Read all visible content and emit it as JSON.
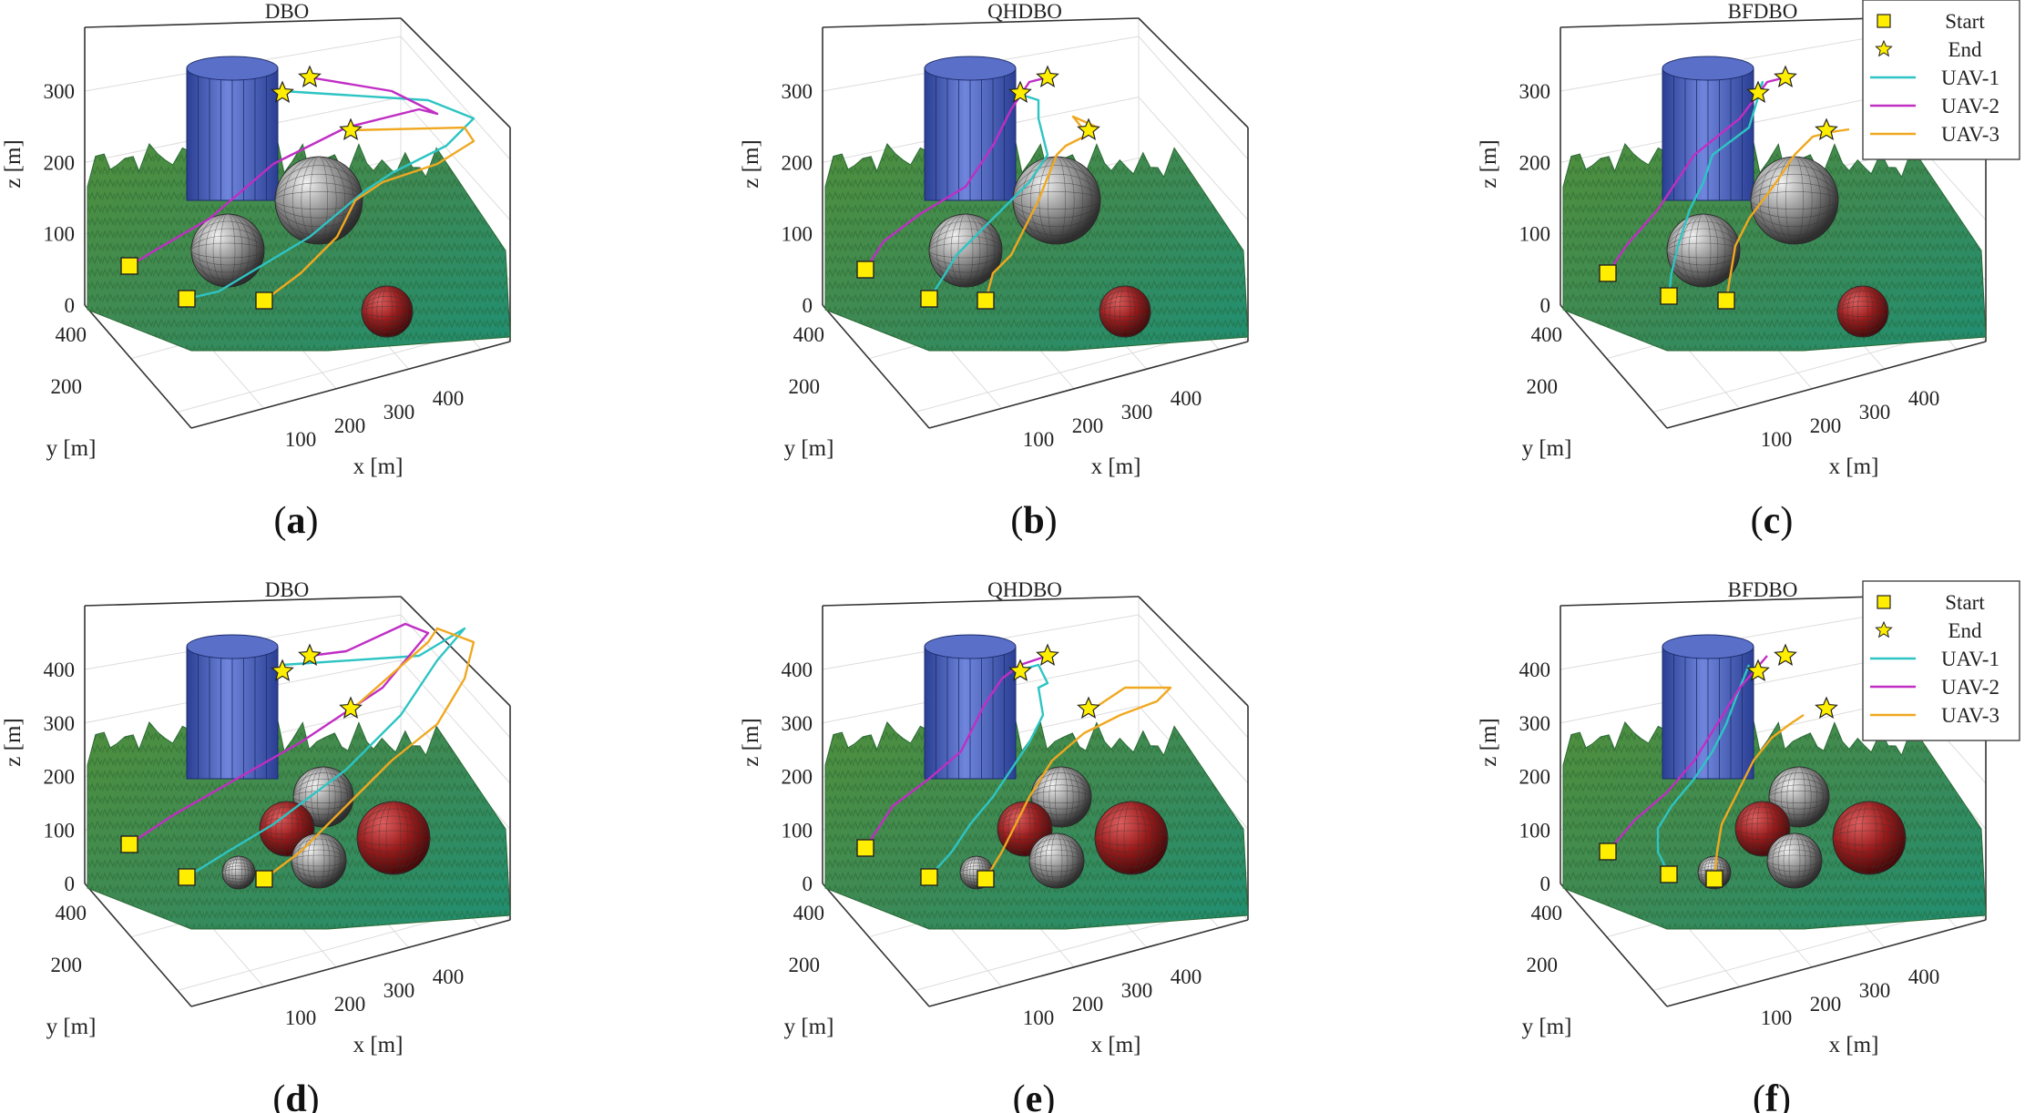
{
  "chart_data": [
    {
      "id": "a",
      "title": "DBO",
      "caption": "a",
      "type": "line3d",
      "xlabel": "x [m]",
      "ylabel": "y [m]",
      "zlabel": "z [m]",
      "xticks": [
        "100",
        "200",
        "300",
        "400"
      ],
      "yticks": [
        "200",
        "400"
      ],
      "zticks": [
        "0",
        "100",
        "200",
        "300"
      ],
      "legend": [],
      "markers": {
        "start": "Start",
        "end": "End"
      },
      "series": [
        {
          "name": "UAV-1",
          "color": "#2ec4c4"
        },
        {
          "name": "UAV-2",
          "color": "#c02ec4"
        },
        {
          "name": "UAV-3",
          "color": "#f0a820"
        }
      ]
    },
    {
      "id": "b",
      "title": "QHDBO",
      "caption": "b",
      "type": "line3d",
      "xlabel": "x [m]",
      "ylabel": "y [m]",
      "zlabel": "z [m]",
      "xticks": [
        "100",
        "200",
        "300",
        "400"
      ],
      "yticks": [
        "200",
        "400"
      ],
      "zticks": [
        "0",
        "100",
        "200",
        "300"
      ],
      "legend": [],
      "markers": {
        "start": "Start",
        "end": "End"
      },
      "series": [
        {
          "name": "UAV-1",
          "color": "#2ec4c4"
        },
        {
          "name": "UAV-2",
          "color": "#c02ec4"
        },
        {
          "name": "UAV-3",
          "color": "#f0a820"
        }
      ]
    },
    {
      "id": "c",
      "title": "BFDBO",
      "caption": "c",
      "type": "line3d",
      "xlabel": "x [m]",
      "ylabel": "y [m]",
      "zlabel": "z [m]",
      "xticks": [
        "100",
        "200",
        "300",
        "400"
      ],
      "yticks": [
        "200",
        "400"
      ],
      "zticks": [
        "0",
        "100",
        "200",
        "300"
      ],
      "legend": [
        "Start",
        "End",
        "UAV-1",
        "UAV-2",
        "UAV-3"
      ],
      "markers": {
        "start": "Start",
        "end": "End"
      },
      "series": [
        {
          "name": "UAV-1",
          "color": "#2ec4c4"
        },
        {
          "name": "UAV-2",
          "color": "#c02ec4"
        },
        {
          "name": "UAV-3",
          "color": "#f0a820"
        }
      ]
    },
    {
      "id": "d",
      "title": "DBO",
      "caption": "d",
      "type": "line3d",
      "xlabel": "x [m]",
      "ylabel": "y [m]",
      "zlabel": "z [m]",
      "xticks": [
        "100",
        "200",
        "300",
        "400"
      ],
      "yticks": [
        "200",
        "400"
      ],
      "zticks": [
        "0",
        "100",
        "200",
        "300",
        "400"
      ],
      "legend": [],
      "markers": {
        "start": "Start",
        "end": "End"
      },
      "series": [
        {
          "name": "UAV-1",
          "color": "#2ec4c4"
        },
        {
          "name": "UAV-2",
          "color": "#c02ec4"
        },
        {
          "name": "UAV-3",
          "color": "#f0a820"
        }
      ]
    },
    {
      "id": "e",
      "title": "QHDBO",
      "caption": "e",
      "type": "line3d",
      "xlabel": "x [m]",
      "ylabel": "y [m]",
      "zlabel": "z [m]",
      "xticks": [
        "100",
        "200",
        "300",
        "400"
      ],
      "yticks": [
        "200",
        "400"
      ],
      "zticks": [
        "0",
        "100",
        "200",
        "300",
        "400"
      ],
      "legend": [],
      "markers": {
        "start": "Start",
        "end": "End"
      },
      "series": [
        {
          "name": "UAV-1",
          "color": "#2ec4c4"
        },
        {
          "name": "UAV-2",
          "color": "#c02ec4"
        },
        {
          "name": "UAV-3",
          "color": "#f0a820"
        }
      ]
    },
    {
      "id": "f",
      "title": "BFDBO",
      "caption": "f",
      "type": "line3d",
      "xlabel": "x [m]",
      "ylabel": "y [m]",
      "zlabel": "z [m]",
      "xticks": [
        "100",
        "200",
        "300",
        "400"
      ],
      "yticks": [
        "200",
        "400"
      ],
      "zticks": [
        "0",
        "100",
        "200",
        "300",
        "400"
      ],
      "legend": [
        "Start",
        "End",
        "UAV-1",
        "UAV-2",
        "UAV-3"
      ],
      "markers": {
        "start": "Start",
        "end": "End"
      },
      "series": [
        {
          "name": "UAV-1",
          "color": "#2ec4c4"
        },
        {
          "name": "UAV-2",
          "color": "#c02ec4"
        },
        {
          "name": "UAV-3",
          "color": "#f0a820"
        }
      ]
    }
  ],
  "colors": {
    "terrain": "#3c8f4f",
    "terrain_dark": "#245f33",
    "cylinder": "#3d55b0",
    "sphere_grey": "#8a8a8a",
    "sphere_red": "#8b1a1a",
    "marker": "#ffee00"
  }
}
